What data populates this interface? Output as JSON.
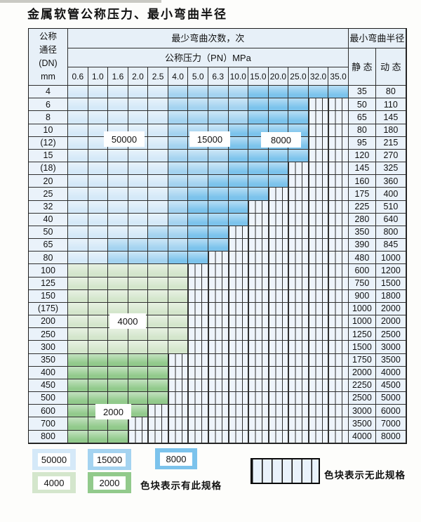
{
  "title": "金属软管公称压力、最小弯曲半径",
  "table": {
    "corner_lines": [
      "公称",
      "通径",
      "(DN)",
      "mm"
    ],
    "bend_cycles_header": "最少弯曲次数，次",
    "pressure_header": "公称压力（PN）MPa",
    "radius_header": "最小弯曲半径",
    "static_header": "静 态",
    "dynamic_header": "动 态",
    "pressure_columns": [
      "0.6",
      "1.0",
      "1.6",
      "2.0",
      "2.5",
      "4.0",
      "5.0",
      "6.3",
      "10.0",
      "15.0",
      "20.0",
      "25.0",
      "32.0",
      "35.0"
    ],
    "zone_values": {
      "a": "50000",
      "b": "15000",
      "c": "8000",
      "d": "4000",
      "e": "2000",
      "x": "无此规格"
    },
    "rows": [
      {
        "dn": "4",
        "zones": "aaaaabbbbccccc",
        "static": "35",
        "dynamic": "80"
      },
      {
        "dn": "6",
        "zones": "aaaaabbbbcccxx",
        "static": "50",
        "dynamic": "110"
      },
      {
        "dn": "8",
        "zones": "aaaaabbbbcccxx",
        "static": "65",
        "dynamic": "145"
      },
      {
        "dn": "10",
        "zones": "aaaaabbbccccxx",
        "static": "80",
        "dynamic": "180"
      },
      {
        "dn": "(12)",
        "zones": "aaaaabbbccccxx",
        "static": "95",
        "dynamic": "215"
      },
      {
        "dn": "15",
        "zones": "aaaaabbbccccxx",
        "static": "120",
        "dynamic": "270"
      },
      {
        "dn": "(18)",
        "zones": "aaaaabbbcccxxx",
        "static": "145",
        "dynamic": "325"
      },
      {
        "dn": "20",
        "zones": "aaaaabbccccxxx",
        "static": "160",
        "dynamic": "360"
      },
      {
        "dn": "25",
        "zones": "aaaaabccccxxxx",
        "static": "175",
        "dynamic": "400"
      },
      {
        "dn": "32",
        "zones": "aaaaabcccxxxxx",
        "static": "225",
        "dynamic": "510"
      },
      {
        "dn": "40",
        "zones": "aaaaabcccxxxxx",
        "static": "280",
        "dynamic": "640"
      },
      {
        "dn": "50",
        "zones": "aaaabbccxxxxxx",
        "static": "350",
        "dynamic": "800"
      },
      {
        "dn": "65",
        "zones": "aabbbbccxxxxxx",
        "static": "390",
        "dynamic": "845"
      },
      {
        "dn": "80",
        "zones": "aabbbccxxxxxxx",
        "static": "480",
        "dynamic": "1000"
      },
      {
        "dn": "100",
        "zones": "ddddddxxxxxxxx",
        "static": "600",
        "dynamic": "1200"
      },
      {
        "dn": "125",
        "zones": "ddddddxxxxxxxx",
        "static": "750",
        "dynamic": "1500"
      },
      {
        "dn": "150",
        "zones": "ddddddxxxxxxxx",
        "static": "900",
        "dynamic": "1800"
      },
      {
        "dn": "(175)",
        "zones": "ddddddxxxxxxxx",
        "static": "1000",
        "dynamic": "2000"
      },
      {
        "dn": "200",
        "zones": "ddddddxxxxxxxx",
        "static": "1000",
        "dynamic": "2000"
      },
      {
        "dn": "250",
        "zones": "ddddddxxxxxxxx",
        "static": "1250",
        "dynamic": "2500"
      },
      {
        "dn": "300",
        "zones": "ddddddxxxxxxxx",
        "static": "1500",
        "dynamic": "3000"
      },
      {
        "dn": "350",
        "zones": "eeeeexxxxxxxxx",
        "static": "1750",
        "dynamic": "3500"
      },
      {
        "dn": "400",
        "zones": "eeeeexxxxxxxxx",
        "static": "2000",
        "dynamic": "4000"
      },
      {
        "dn": "450",
        "zones": "eeeeexxxxxxxxx",
        "static": "2250",
        "dynamic": "4500"
      },
      {
        "dn": "500",
        "zones": "eeeeexxxxxxxxx",
        "static": "2500",
        "dynamic": "5000"
      },
      {
        "dn": "600",
        "zones": "eeeexxxxxxxxxx",
        "static": "3000",
        "dynamic": "6000"
      },
      {
        "dn": "700",
        "zones": "eeexxxxxxxxxxx",
        "static": "3500",
        "dynamic": "7000"
      },
      {
        "dn": "800",
        "zones": "eeexxxxxxxxxxx",
        "static": "4000",
        "dynamic": "8000"
      }
    ],
    "overlay_labels": [
      "50000",
      "15000",
      "8000",
      "4000",
      "2000"
    ]
  },
  "legend": {
    "swatches": [
      {
        "value": "50000",
        "zone": "a"
      },
      {
        "value": "15000",
        "zone": "b"
      },
      {
        "value": "8000",
        "zone": "c"
      },
      {
        "value": "4000",
        "zone": "d"
      },
      {
        "value": "2000",
        "zone": "e"
      }
    ],
    "present_label": "色块表示有此规格",
    "absent_label": "色块表示无此规格"
  },
  "colors": {
    "c50000": "#d5e9f8",
    "c15000": "#a4d3f0",
    "c8000": "#7cc3ec",
    "c4000": "#d4e6cc",
    "c2000": "#92ca8c",
    "hatch_bg": "#eef4fb",
    "grid": "#2e2e2e",
    "header_bg": "#e7f0f8",
    "label_bg": "#eaf2fa",
    "page_bg": "#fdfdfb"
  }
}
